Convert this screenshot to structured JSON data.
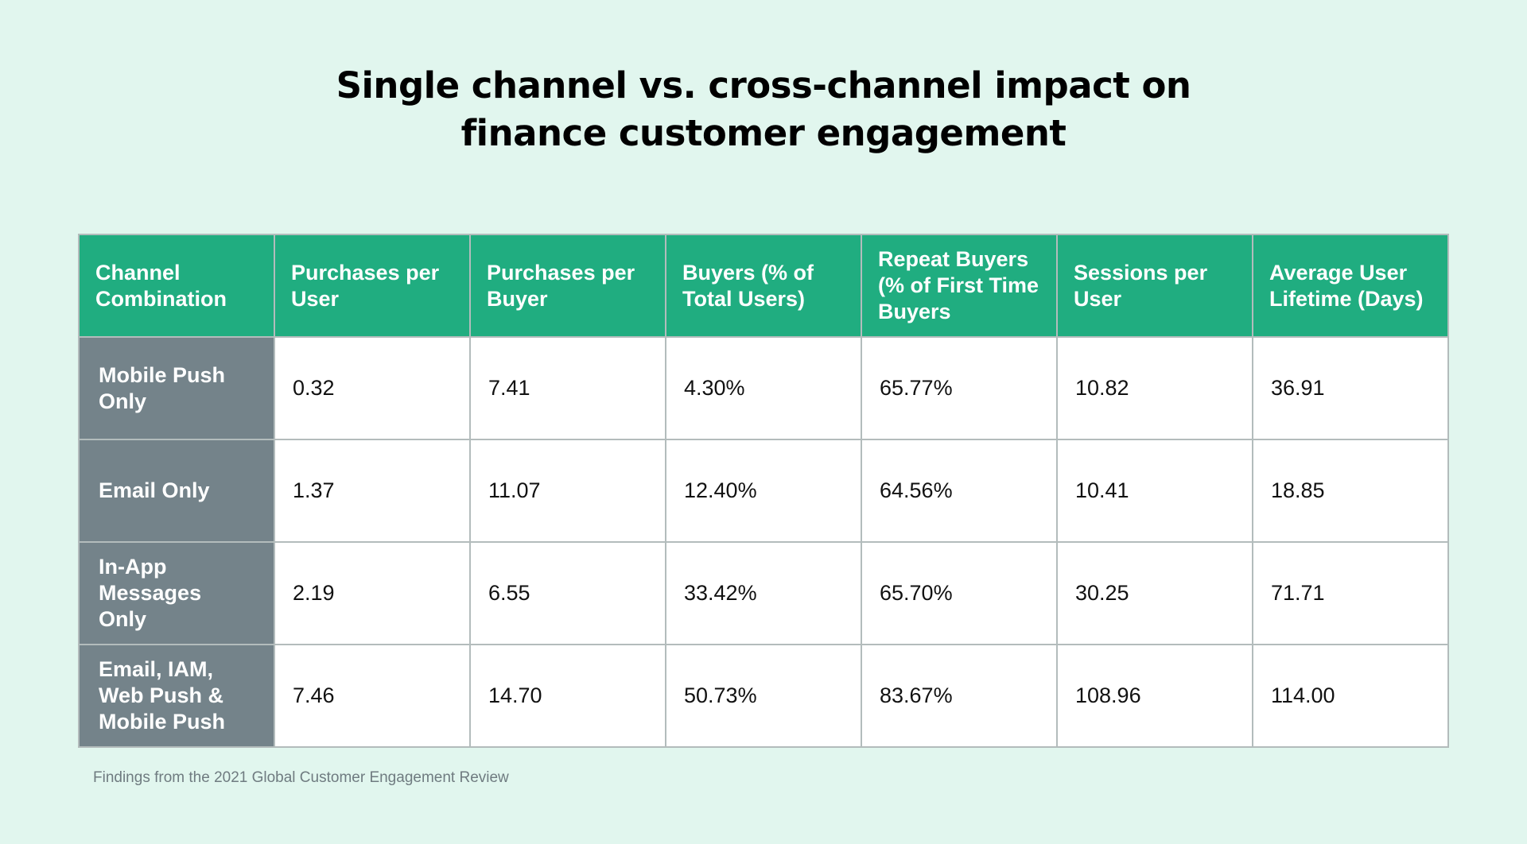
{
  "title": {
    "line1": "Single channel vs. cross-channel impact on",
    "line2": "finance customer engagement"
  },
  "table": {
    "headers": [
      "Channel Combination",
      "Purchases per User",
      "Purchases per Buyer",
      "Buyers (% of Total Users)",
      "Repeat Buyers (% of First Time Buyers",
      "Sessions per User",
      "Average User Lifetime (Days)"
    ],
    "rows": [
      {
        "label": "Mobile Push Only",
        "values": [
          "0.32",
          "7.41",
          "4.30%",
          "65.77%",
          "10.82",
          "36.91"
        ]
      },
      {
        "label": "Email Only",
        "values": [
          "1.37",
          "11.07",
          "12.40%",
          "64.56%",
          "10.41",
          "18.85"
        ]
      },
      {
        "label": "In-App Messages Only",
        "values": [
          "2.19",
          "6.55",
          "33.42%",
          "65.70%",
          "30.25",
          "71.71"
        ]
      },
      {
        "label": "Email, IAM, Web Push & Mobile Push",
        "values": [
          "7.46",
          "14.70",
          "50.73%",
          "83.67%",
          "108.96",
          "114.00"
        ]
      }
    ]
  },
  "footer": "Findings from the 2021 Global Customer Engagement Review",
  "colors": {
    "background": "#e1f6ee",
    "header": "#20ad80",
    "row_header": "#74838a"
  }
}
